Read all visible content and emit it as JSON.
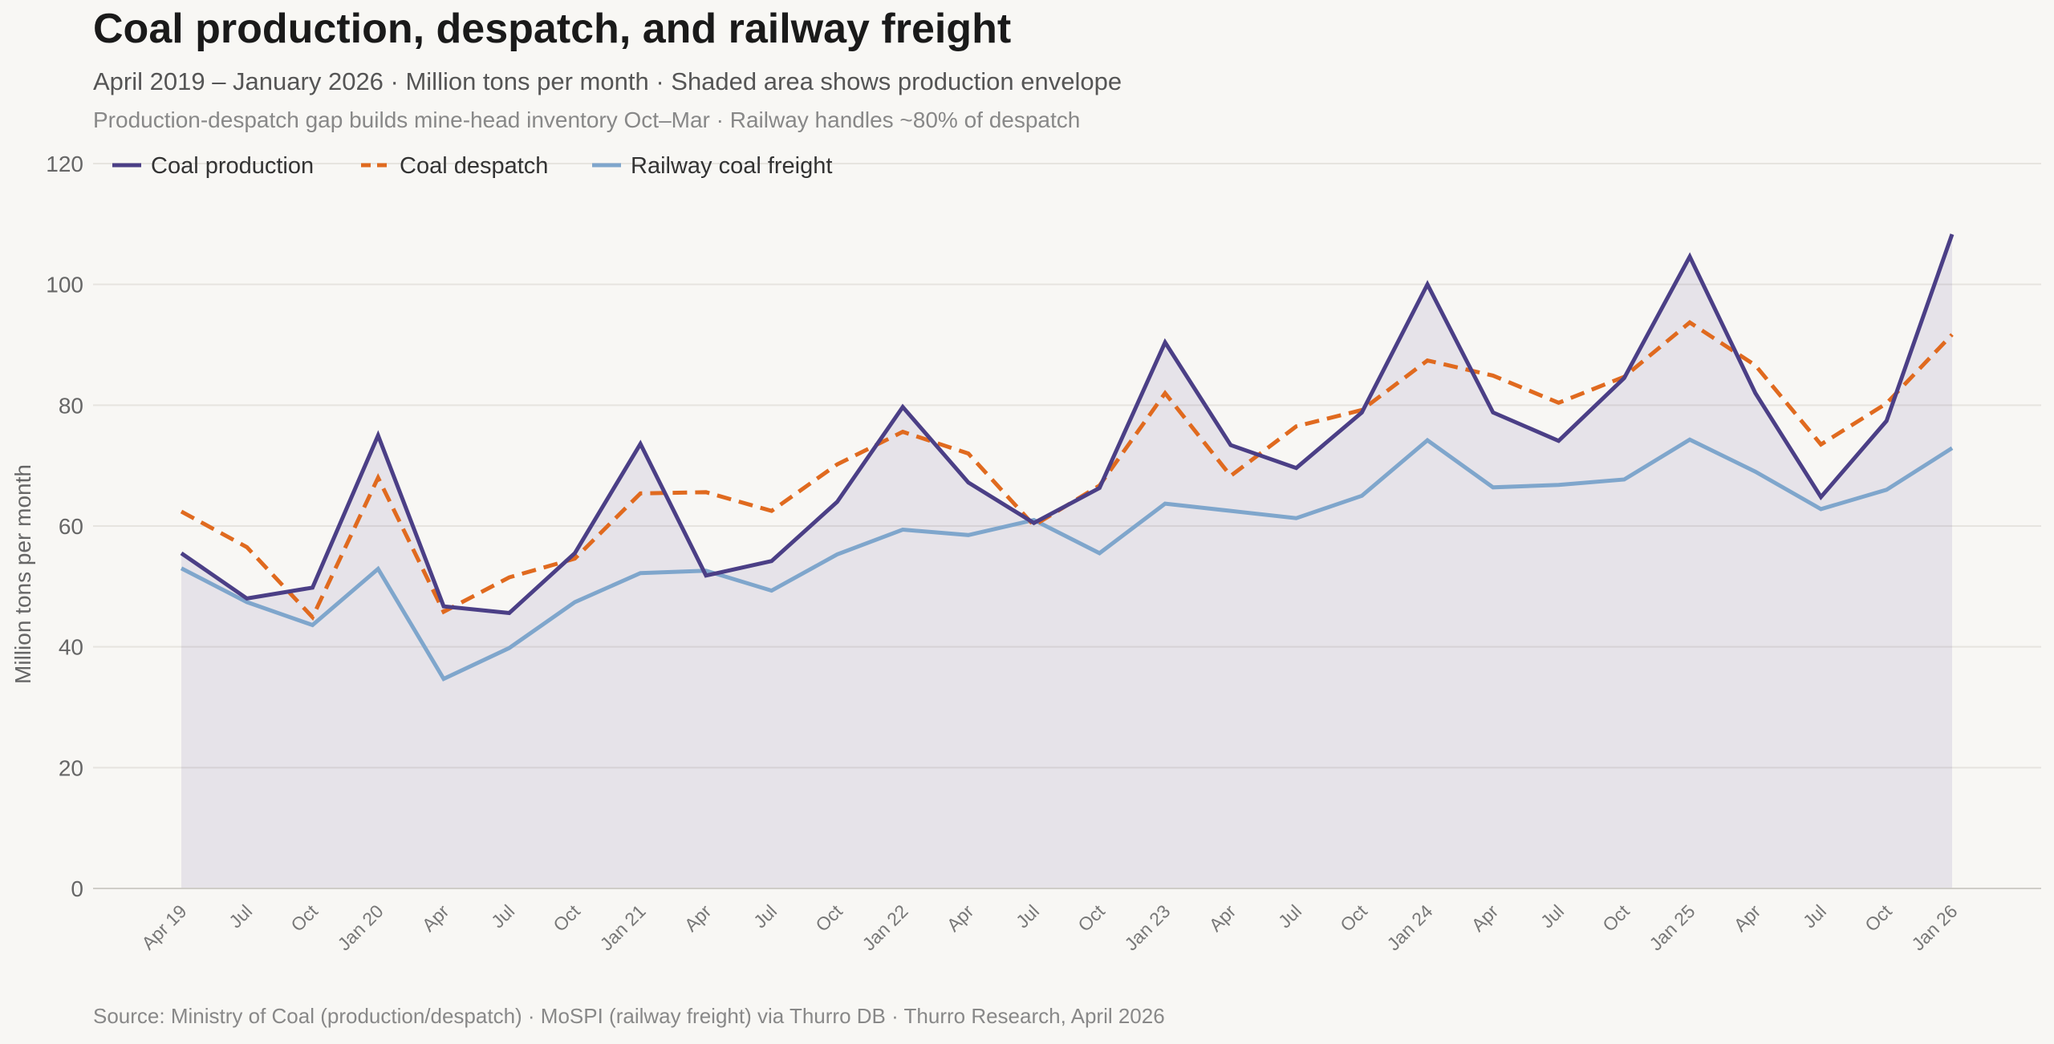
{
  "header": {
    "title": "Coal production, despatch, and railway freight",
    "subtitle": "April 2019 – January 2026 · Million tons per month · Shaded area shows production envelope",
    "note": "Production-despatch gap builds mine-head inventory Oct–Mar · Railway handles ~80% of despatch"
  },
  "footer": {
    "source": "Source: Ministry of Coal (production/despatch) · MoSPI (railway freight) via Thurro DB · Thurro Research, April 2026"
  },
  "chart_data": {
    "type": "line",
    "title": "Coal production, despatch, and railway freight",
    "ylabel": "Million tons per month",
    "xlabel": "",
    "ylim": [
      0,
      120
    ],
    "yticks": [
      0,
      20,
      40,
      60,
      80,
      100,
      120
    ],
    "grid": true,
    "legend_position": "top-left",
    "categories": [
      "Apr 19",
      "Jul",
      "Oct",
      "Jan 20",
      "Apr",
      "Jul",
      "Oct",
      "Jan 21",
      "Apr",
      "Jul",
      "Oct",
      "Jan 22",
      "Apr",
      "Jul",
      "Oct",
      "Jan 23",
      "Apr",
      "Jul",
      "Oct",
      "Jan 24",
      "Apr",
      "Jul",
      "Oct",
      "Jan 25",
      "Apr",
      "Jul",
      "Oct",
      "Jan 26"
    ],
    "series": [
      {
        "name": "Coal production",
        "color": "#4b3f86",
        "style": "solid",
        "values": [
          55.5,
          48.0,
          49.8,
          75.0,
          46.7,
          45.6,
          55.5,
          73.6,
          51.8,
          54.2,
          64.0,
          79.7,
          67.2,
          60.5,
          66.3,
          90.4,
          73.4,
          69.6,
          78.8,
          100.0,
          78.8,
          74.1,
          84.5,
          104.6,
          82.0,
          64.8,
          77.4,
          108.3
        ]
      },
      {
        "name": "Coal despatch",
        "color": "#e06a1f",
        "style": "dashed",
        "values": [
          62.4,
          56.5,
          44.9,
          68.0,
          45.8,
          51.5,
          54.6,
          65.4,
          65.6,
          62.5,
          70.2,
          75.6,
          72.0,
          60.1,
          66.7,
          82.0,
          68.3,
          76.5,
          79.2,
          87.4,
          84.9,
          80.4,
          84.7,
          93.7,
          86.6,
          73.5,
          80.3,
          91.7
        ]
      },
      {
        "name": "Railway coal freight",
        "color": "#7fa6cc",
        "style": "solid",
        "values": [
          53.0,
          47.4,
          43.6,
          52.9,
          34.7,
          39.8,
          47.4,
          52.2,
          52.6,
          49.3,
          55.3,
          59.4,
          58.5,
          61.0,
          55.5,
          63.7,
          62.5,
          61.3,
          65.0,
          74.2,
          66.4,
          66.8,
          67.7,
          74.3,
          69.0,
          62.8,
          66.0,
          72.9
        ]
      }
    ]
  }
}
